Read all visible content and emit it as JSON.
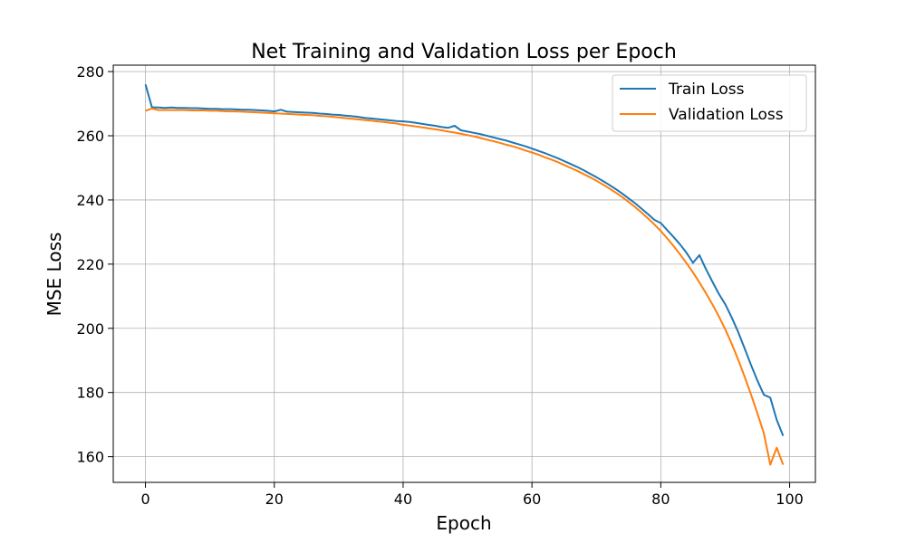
{
  "chart_data": {
    "type": "line",
    "title": "Net Training and Validation Loss per Epoch",
    "xlabel": "Epoch",
    "ylabel": "MSE Loss",
    "xlim": [
      -5,
      104
    ],
    "ylim": [
      152,
      282
    ],
    "xticks": [
      0,
      20,
      40,
      60,
      80,
      100
    ],
    "yticks": [
      160,
      180,
      200,
      220,
      240,
      260,
      280
    ],
    "grid": true,
    "legend_position": "top-right",
    "series": [
      {
        "name": "Train Loss",
        "color": "#1f77b4",
        "points": [
          [
            0,
            276.0
          ],
          [
            1,
            268.9
          ],
          [
            2,
            268.8
          ],
          [
            3,
            268.7
          ],
          [
            4,
            268.8
          ],
          [
            5,
            268.7
          ],
          [
            6,
            268.7
          ],
          [
            7,
            268.6
          ],
          [
            8,
            268.6
          ],
          [
            9,
            268.5
          ],
          [
            10,
            268.4
          ],
          [
            11,
            268.4
          ],
          [
            12,
            268.3
          ],
          [
            13,
            268.3
          ],
          [
            14,
            268.2
          ],
          [
            15,
            268.1
          ],
          [
            16,
            268.1
          ],
          [
            17,
            268.0
          ],
          [
            18,
            267.9
          ],
          [
            19,
            267.8
          ],
          [
            20,
            267.6
          ],
          [
            21,
            268.1
          ],
          [
            22,
            267.5
          ],
          [
            23,
            267.4
          ],
          [
            24,
            267.3
          ],
          [
            25,
            267.2
          ],
          [
            26,
            267.1
          ],
          [
            27,
            266.9
          ],
          [
            28,
            266.8
          ],
          [
            29,
            266.6
          ],
          [
            30,
            266.5
          ],
          [
            31,
            266.3
          ],
          [
            32,
            266.1
          ],
          [
            33,
            265.9
          ],
          [
            34,
            265.6
          ],
          [
            35,
            265.4
          ],
          [
            36,
            265.2
          ],
          [
            37,
            265.0
          ],
          [
            38,
            264.8
          ],
          [
            39,
            264.6
          ],
          [
            40,
            264.5
          ],
          [
            41,
            264.3
          ],
          [
            42,
            264.0
          ],
          [
            43,
            263.7
          ],
          [
            44,
            263.4
          ],
          [
            45,
            263.1
          ],
          [
            46,
            262.7
          ],
          [
            47,
            262.5
          ],
          [
            48,
            263.1
          ],
          [
            49,
            261.7
          ],
          [
            50,
            261.3
          ],
          [
            51,
            260.9
          ],
          [
            52,
            260.5
          ],
          [
            53,
            260.0
          ],
          [
            54,
            259.5
          ],
          [
            55,
            259.0
          ],
          [
            56,
            258.5
          ],
          [
            57,
            257.9
          ],
          [
            58,
            257.3
          ],
          [
            59,
            256.7
          ],
          [
            60,
            256.0
          ],
          [
            61,
            255.3
          ],
          [
            62,
            254.6
          ],
          [
            63,
            253.8
          ],
          [
            64,
            253.0
          ],
          [
            65,
            252.1
          ],
          [
            66,
            251.2
          ],
          [
            67,
            250.3
          ],
          [
            68,
            249.3
          ],
          [
            69,
            248.2
          ],
          [
            70,
            247.1
          ],
          [
            71,
            245.9
          ],
          [
            72,
            244.7
          ],
          [
            73,
            243.4
          ],
          [
            74,
            242.0
          ],
          [
            75,
            240.5
          ],
          [
            76,
            239.0
          ],
          [
            77,
            237.3
          ],
          [
            78,
            235.6
          ],
          [
            79,
            233.8
          ],
          [
            80,
            232.8
          ],
          [
            81,
            230.6
          ],
          [
            82,
            228.4
          ],
          [
            83,
            226.1
          ],
          [
            84,
            223.5
          ],
          [
            85,
            220.4
          ],
          [
            86,
            222.8
          ],
          [
            87,
            218.5
          ],
          [
            88,
            214.6
          ],
          [
            89,
            210.8
          ],
          [
            90,
            207.5
          ],
          [
            91,
            203.4
          ],
          [
            92,
            198.9
          ],
          [
            93,
            193.8
          ],
          [
            94,
            188.6
          ],
          [
            95,
            183.7
          ],
          [
            96,
            179.3
          ],
          [
            97,
            178.4
          ],
          [
            98,
            171.5
          ],
          [
            99,
            166.5
          ]
        ]
      },
      {
        "name": "Validation Loss",
        "color": "#ff7f0e",
        "points": [
          [
            0,
            267.8
          ],
          [
            1,
            268.5
          ],
          [
            2,
            268.0
          ],
          [
            3,
            268.0
          ],
          [
            4,
            268.0
          ],
          [
            5,
            268.0
          ],
          [
            6,
            268.0
          ],
          [
            7,
            267.9
          ],
          [
            8,
            267.9
          ],
          [
            9,
            267.9
          ],
          [
            10,
            267.8
          ],
          [
            11,
            267.8
          ],
          [
            12,
            267.7
          ],
          [
            13,
            267.6
          ],
          [
            14,
            267.6
          ],
          [
            15,
            267.5
          ],
          [
            16,
            267.4
          ],
          [
            17,
            267.3
          ],
          [
            18,
            267.2
          ],
          [
            19,
            267.1
          ],
          [
            20,
            267.0
          ],
          [
            21,
            266.9
          ],
          [
            22,
            266.8
          ],
          [
            23,
            266.7
          ],
          [
            24,
            266.6
          ],
          [
            25,
            266.5
          ],
          [
            26,
            266.4
          ],
          [
            27,
            266.2
          ],
          [
            28,
            266.1
          ],
          [
            29,
            265.9
          ],
          [
            30,
            265.7
          ],
          [
            31,
            265.5
          ],
          [
            32,
            265.3
          ],
          [
            33,
            265.1
          ],
          [
            34,
            264.9
          ],
          [
            35,
            264.7
          ],
          [
            36,
            264.5
          ],
          [
            37,
            264.3
          ],
          [
            38,
            264.0
          ],
          [
            39,
            263.8
          ],
          [
            40,
            263.4
          ],
          [
            41,
            263.2
          ],
          [
            42,
            262.9
          ],
          [
            43,
            262.6
          ],
          [
            44,
            262.3
          ],
          [
            45,
            262.0
          ],
          [
            46,
            261.7
          ],
          [
            47,
            261.3
          ],
          [
            48,
            261.0
          ],
          [
            49,
            260.6
          ],
          [
            50,
            260.2
          ],
          [
            51,
            259.8
          ],
          [
            52,
            259.3
          ],
          [
            53,
            258.8
          ],
          [
            54,
            258.3
          ],
          [
            55,
            257.8
          ],
          [
            56,
            257.2
          ],
          [
            57,
            256.7
          ],
          [
            58,
            256.1
          ],
          [
            59,
            255.4
          ],
          [
            60,
            254.8
          ],
          [
            61,
            254.1
          ],
          [
            62,
            253.3
          ],
          [
            63,
            252.6
          ],
          [
            64,
            251.8
          ],
          [
            65,
            250.9
          ],
          [
            66,
            250.0
          ],
          [
            67,
            249.1
          ],
          [
            68,
            248.1
          ],
          [
            69,
            247.1
          ],
          [
            70,
            246.0
          ],
          [
            71,
            244.8
          ],
          [
            72,
            243.6
          ],
          [
            73,
            242.3
          ],
          [
            74,
            240.9
          ],
          [
            75,
            239.4
          ],
          [
            76,
            237.8
          ],
          [
            77,
            236.1
          ],
          [
            78,
            234.3
          ],
          [
            79,
            232.4
          ],
          [
            80,
            230.3
          ],
          [
            81,
            228.0
          ],
          [
            82,
            225.6
          ],
          [
            83,
            223.0
          ],
          [
            84,
            220.3
          ],
          [
            85,
            217.4
          ],
          [
            86,
            214.3
          ],
          [
            87,
            211.0
          ],
          [
            88,
            207.5
          ],
          [
            89,
            203.8
          ],
          [
            90,
            199.7
          ],
          [
            91,
            195.2
          ],
          [
            92,
            190.3
          ],
          [
            93,
            185.0
          ],
          [
            94,
            179.4
          ],
          [
            95,
            173.5
          ],
          [
            96,
            167.3
          ],
          [
            97,
            157.5
          ],
          [
            98,
            162.8
          ],
          [
            99,
            157.5
          ]
        ]
      }
    ]
  }
}
